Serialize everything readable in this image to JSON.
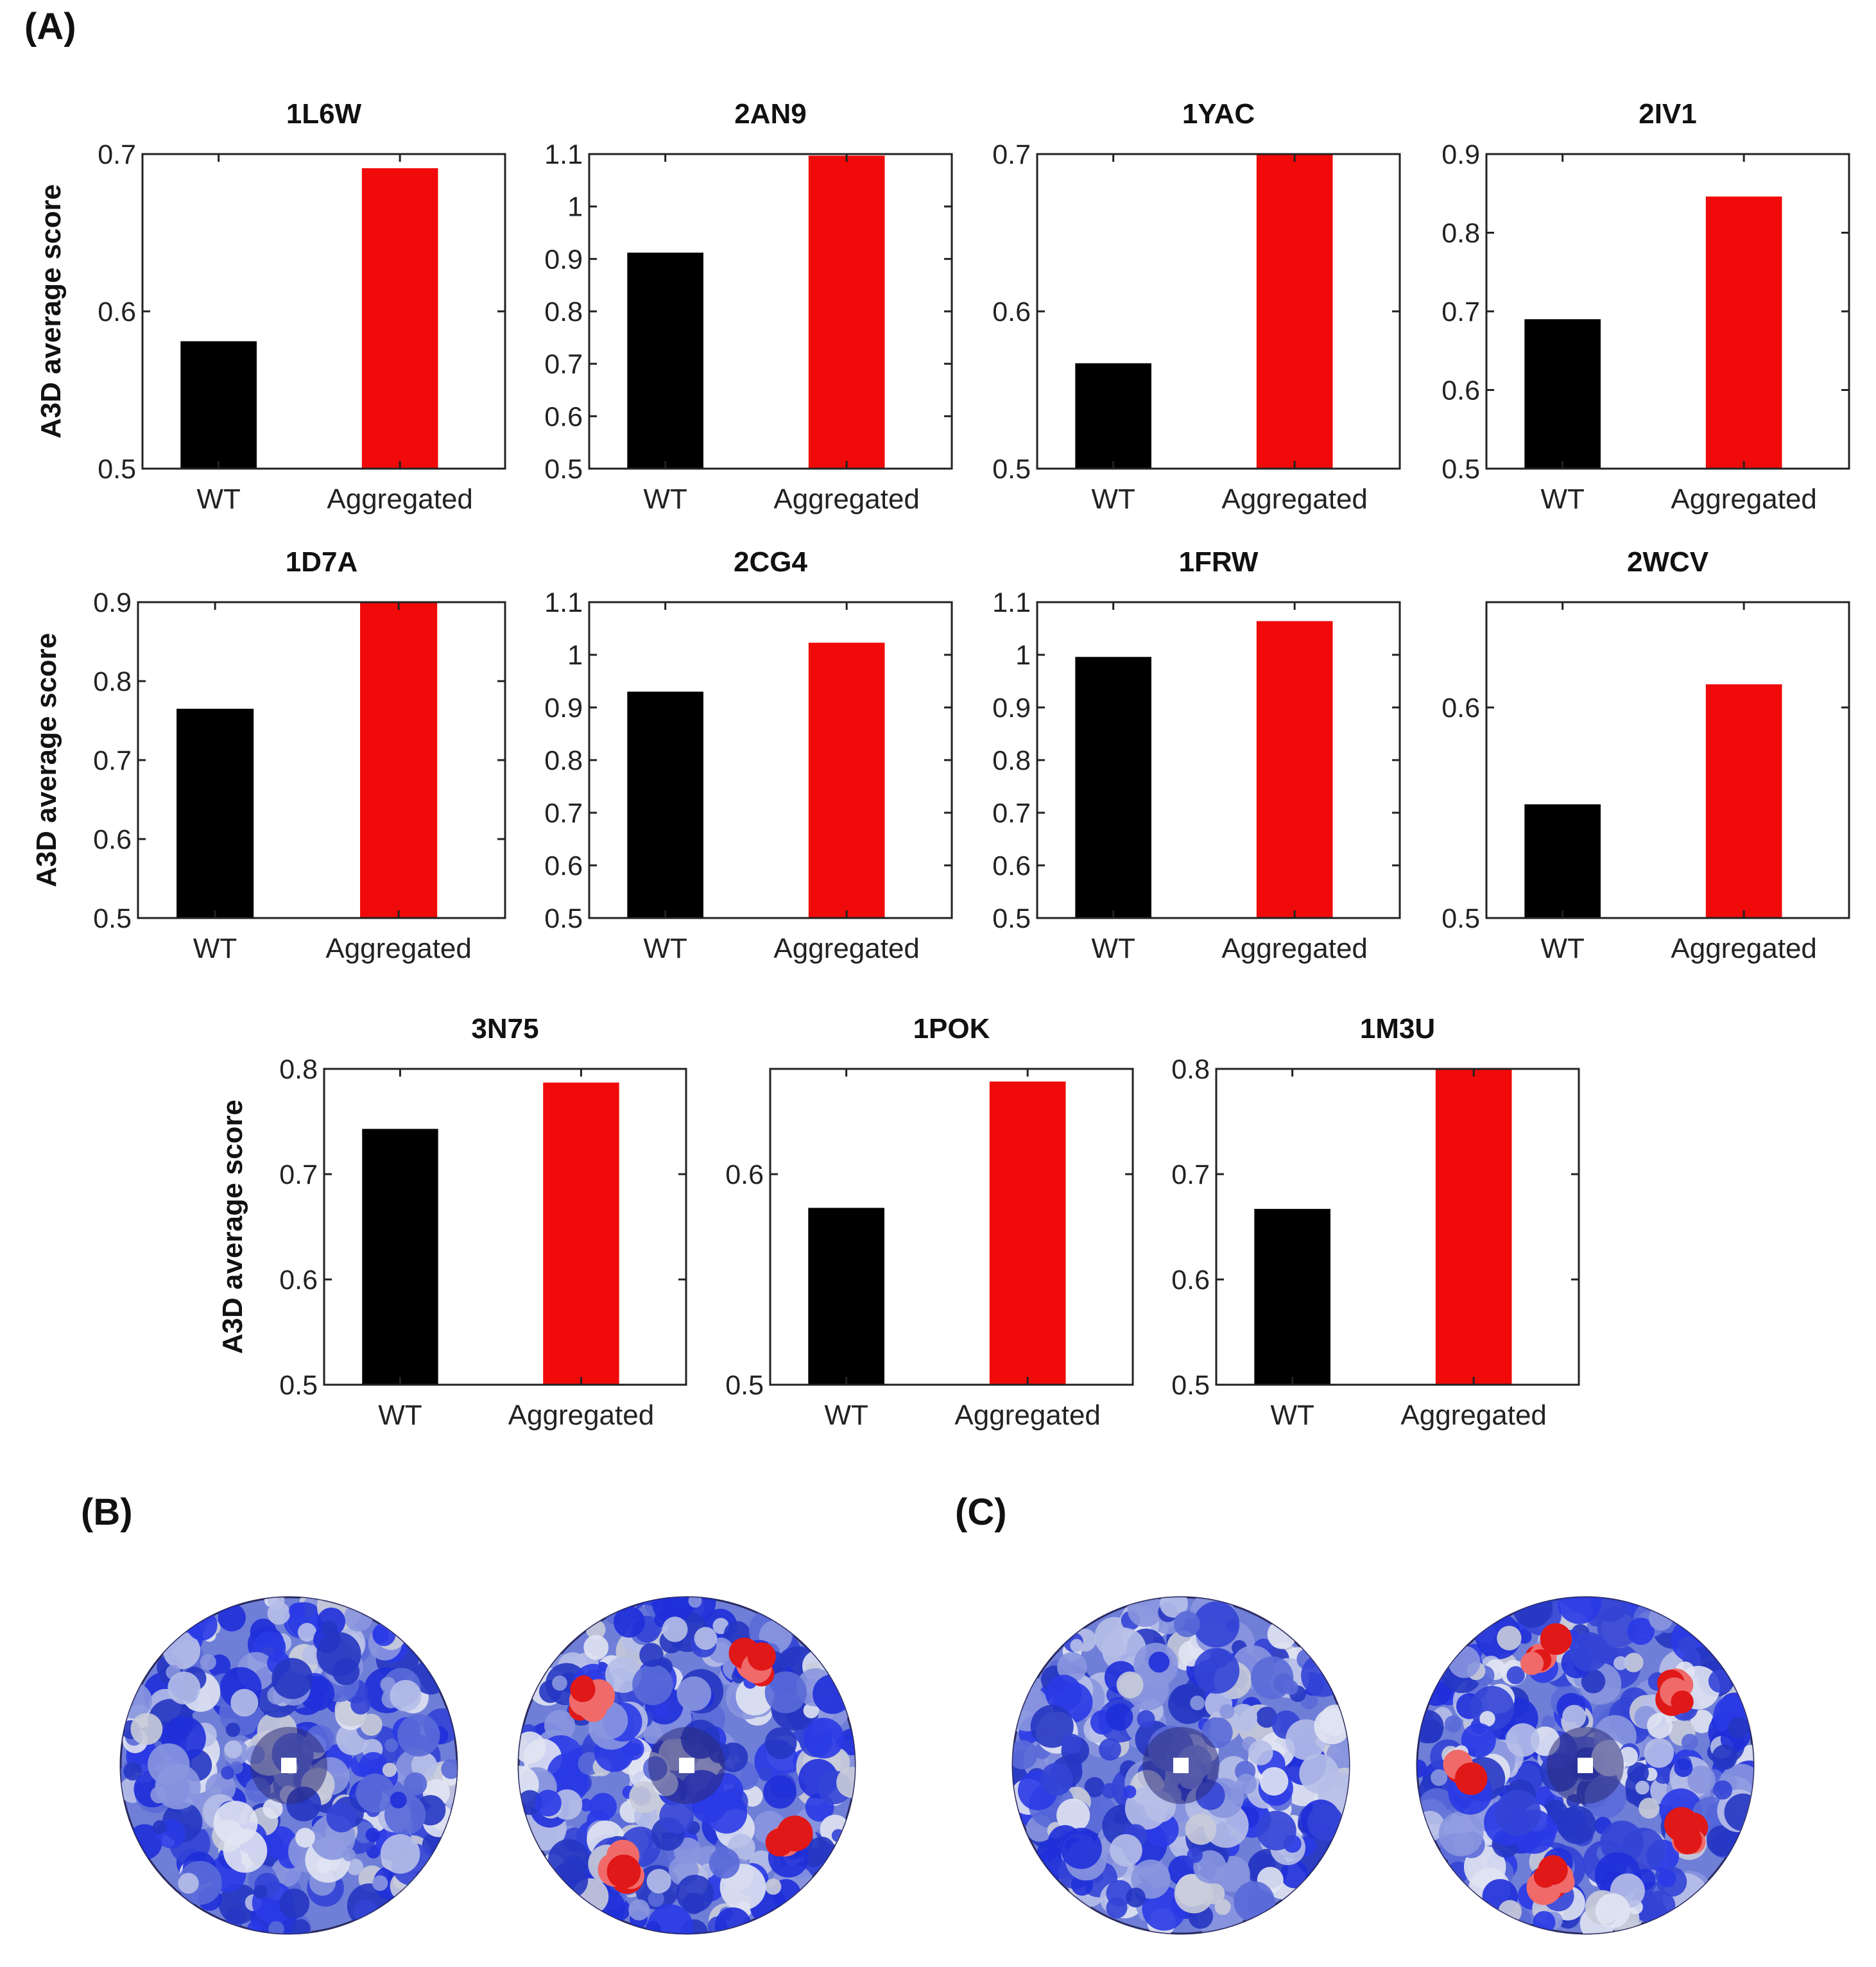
{
  "panel_labels": {
    "a": "(A)",
    "b": "(B)",
    "c": "(C)"
  },
  "ylabel": "A3D average score",
  "colors": {
    "wt": "#000000",
    "aggregated": "#f00a0a",
    "axis": "#222222"
  },
  "chart_data": [
    {
      "type": "bar",
      "title": "1L6W",
      "categories": [
        "WT",
        "Aggregated"
      ],
      "values": [
        0.581,
        0.691
      ],
      "ylim": [
        0.5,
        0.7
      ],
      "yticks": [
        0.5,
        0.6,
        0.7
      ],
      "ytick_labels": [
        "0.5",
        "0.6",
        "0.7"
      ],
      "ylabel": "A3D average score"
    },
    {
      "type": "bar",
      "title": "2AN9",
      "categories": [
        "WT",
        "Aggregated"
      ],
      "values": [
        0.912,
        1.097
      ],
      "ylim": [
        0.5,
        1.1
      ],
      "yticks": [
        0.5,
        0.6,
        0.7,
        0.8,
        0.9,
        1.0,
        1.1
      ],
      "ytick_labels": [
        "0.5",
        "0.6",
        "0.7",
        "0.8",
        "0.9",
        "1",
        "1.1"
      ],
      "ylabel": ""
    },
    {
      "type": "bar",
      "title": "1YAC",
      "categories": [
        "WT",
        "Aggregated"
      ],
      "values": [
        0.567,
        0.7
      ],
      "ylim": [
        0.5,
        0.7
      ],
      "yticks": [
        0.5,
        0.6,
        0.7
      ],
      "ytick_labels": [
        "0.5",
        "0.6",
        "0.7"
      ],
      "ylabel": ""
    },
    {
      "type": "bar",
      "title": "2IV1",
      "categories": [
        "WT",
        "Aggregated"
      ],
      "values": [
        0.69,
        0.846
      ],
      "ylim": [
        0.5,
        0.9
      ],
      "yticks": [
        0.5,
        0.6,
        0.7,
        0.8,
        0.9
      ],
      "ytick_labels": [
        "0.5",
        "0.6",
        "0.7",
        "0.8",
        "0.9"
      ],
      "ylabel": ""
    },
    {
      "type": "bar",
      "title": "1D7A",
      "categories": [
        "WT",
        "Aggregated"
      ],
      "values": [
        0.765,
        0.9
      ],
      "ylim": [
        0.5,
        0.9
      ],
      "yticks": [
        0.5,
        0.6,
        0.7,
        0.8,
        0.9
      ],
      "ytick_labels": [
        "0.5",
        "0.6",
        "0.7",
        "0.8",
        "0.9"
      ],
      "ylabel": "A3D average score"
    },
    {
      "type": "bar",
      "title": "2CG4",
      "categories": [
        "WT",
        "Aggregated"
      ],
      "values": [
        0.93,
        1.023
      ],
      "ylim": [
        0.5,
        1.1
      ],
      "yticks": [
        0.5,
        0.6,
        0.7,
        0.8,
        0.9,
        1.0,
        1.1
      ],
      "ytick_labels": [
        "0.5",
        "0.6",
        "0.7",
        "0.8",
        "0.9",
        "1",
        "1.1"
      ],
      "ylabel": ""
    },
    {
      "type": "bar",
      "title": "1FRW",
      "categories": [
        "WT",
        "Aggregated"
      ],
      "values": [
        0.996,
        1.064
      ],
      "ylim": [
        0.5,
        1.1
      ],
      "yticks": [
        0.5,
        0.6,
        0.7,
        0.8,
        0.9,
        1.0,
        1.1
      ],
      "ytick_labels": [
        "0.5",
        "0.6",
        "0.7",
        "0.8",
        "0.9",
        "1",
        "1.1"
      ],
      "ylabel": ""
    },
    {
      "type": "bar",
      "title": "2WCV",
      "categories": [
        "WT",
        "Aggregated"
      ],
      "values": [
        0.554,
        0.611
      ],
      "ylim": [
        0.5,
        0.65
      ],
      "yticks": [
        0.5,
        0.6
      ],
      "ytick_labels": [
        "0.5",
        "0.6"
      ],
      "ylabel": ""
    },
    {
      "type": "bar",
      "title": "3N75",
      "categories": [
        "WT",
        "Aggregated"
      ],
      "values": [
        0.743,
        0.787
      ],
      "ylim": [
        0.5,
        0.8
      ],
      "yticks": [
        0.5,
        0.6,
        0.7,
        0.8
      ],
      "ytick_labels": [
        "0.5",
        "0.6",
        "0.7",
        "0.8"
      ],
      "ylabel": "A3D average score"
    },
    {
      "type": "bar",
      "title": "1POK",
      "categories": [
        "WT",
        "Aggregated"
      ],
      "values": [
        0.584,
        0.644
      ],
      "ylim": [
        0.5,
        0.65
      ],
      "yticks": [
        0.5,
        0.6
      ],
      "ytick_labels": [
        "0.5",
        "0.6"
      ],
      "ylabel": ""
    },
    {
      "type": "bar",
      "title": "1M3U",
      "categories": [
        "WT",
        "Aggregated"
      ],
      "values": [
        0.667,
        0.8
      ],
      "ylim": [
        0.5,
        0.8
      ],
      "yticks": [
        0.5,
        0.6,
        0.7,
        0.8
      ],
      "ytick_labels": [
        "0.5",
        "0.6",
        "0.7",
        "0.8"
      ],
      "ylabel": ""
    }
  ],
  "structures": [
    {
      "panel": "b",
      "variant": "WT",
      "hot_spots": 0
    },
    {
      "panel": "b",
      "variant": "Aggregated",
      "hot_spots": 4
    },
    {
      "panel": "c",
      "variant": "WT",
      "hot_spots": 0
    },
    {
      "panel": "c",
      "variant": "Aggregated",
      "hot_spots": 5
    }
  ]
}
